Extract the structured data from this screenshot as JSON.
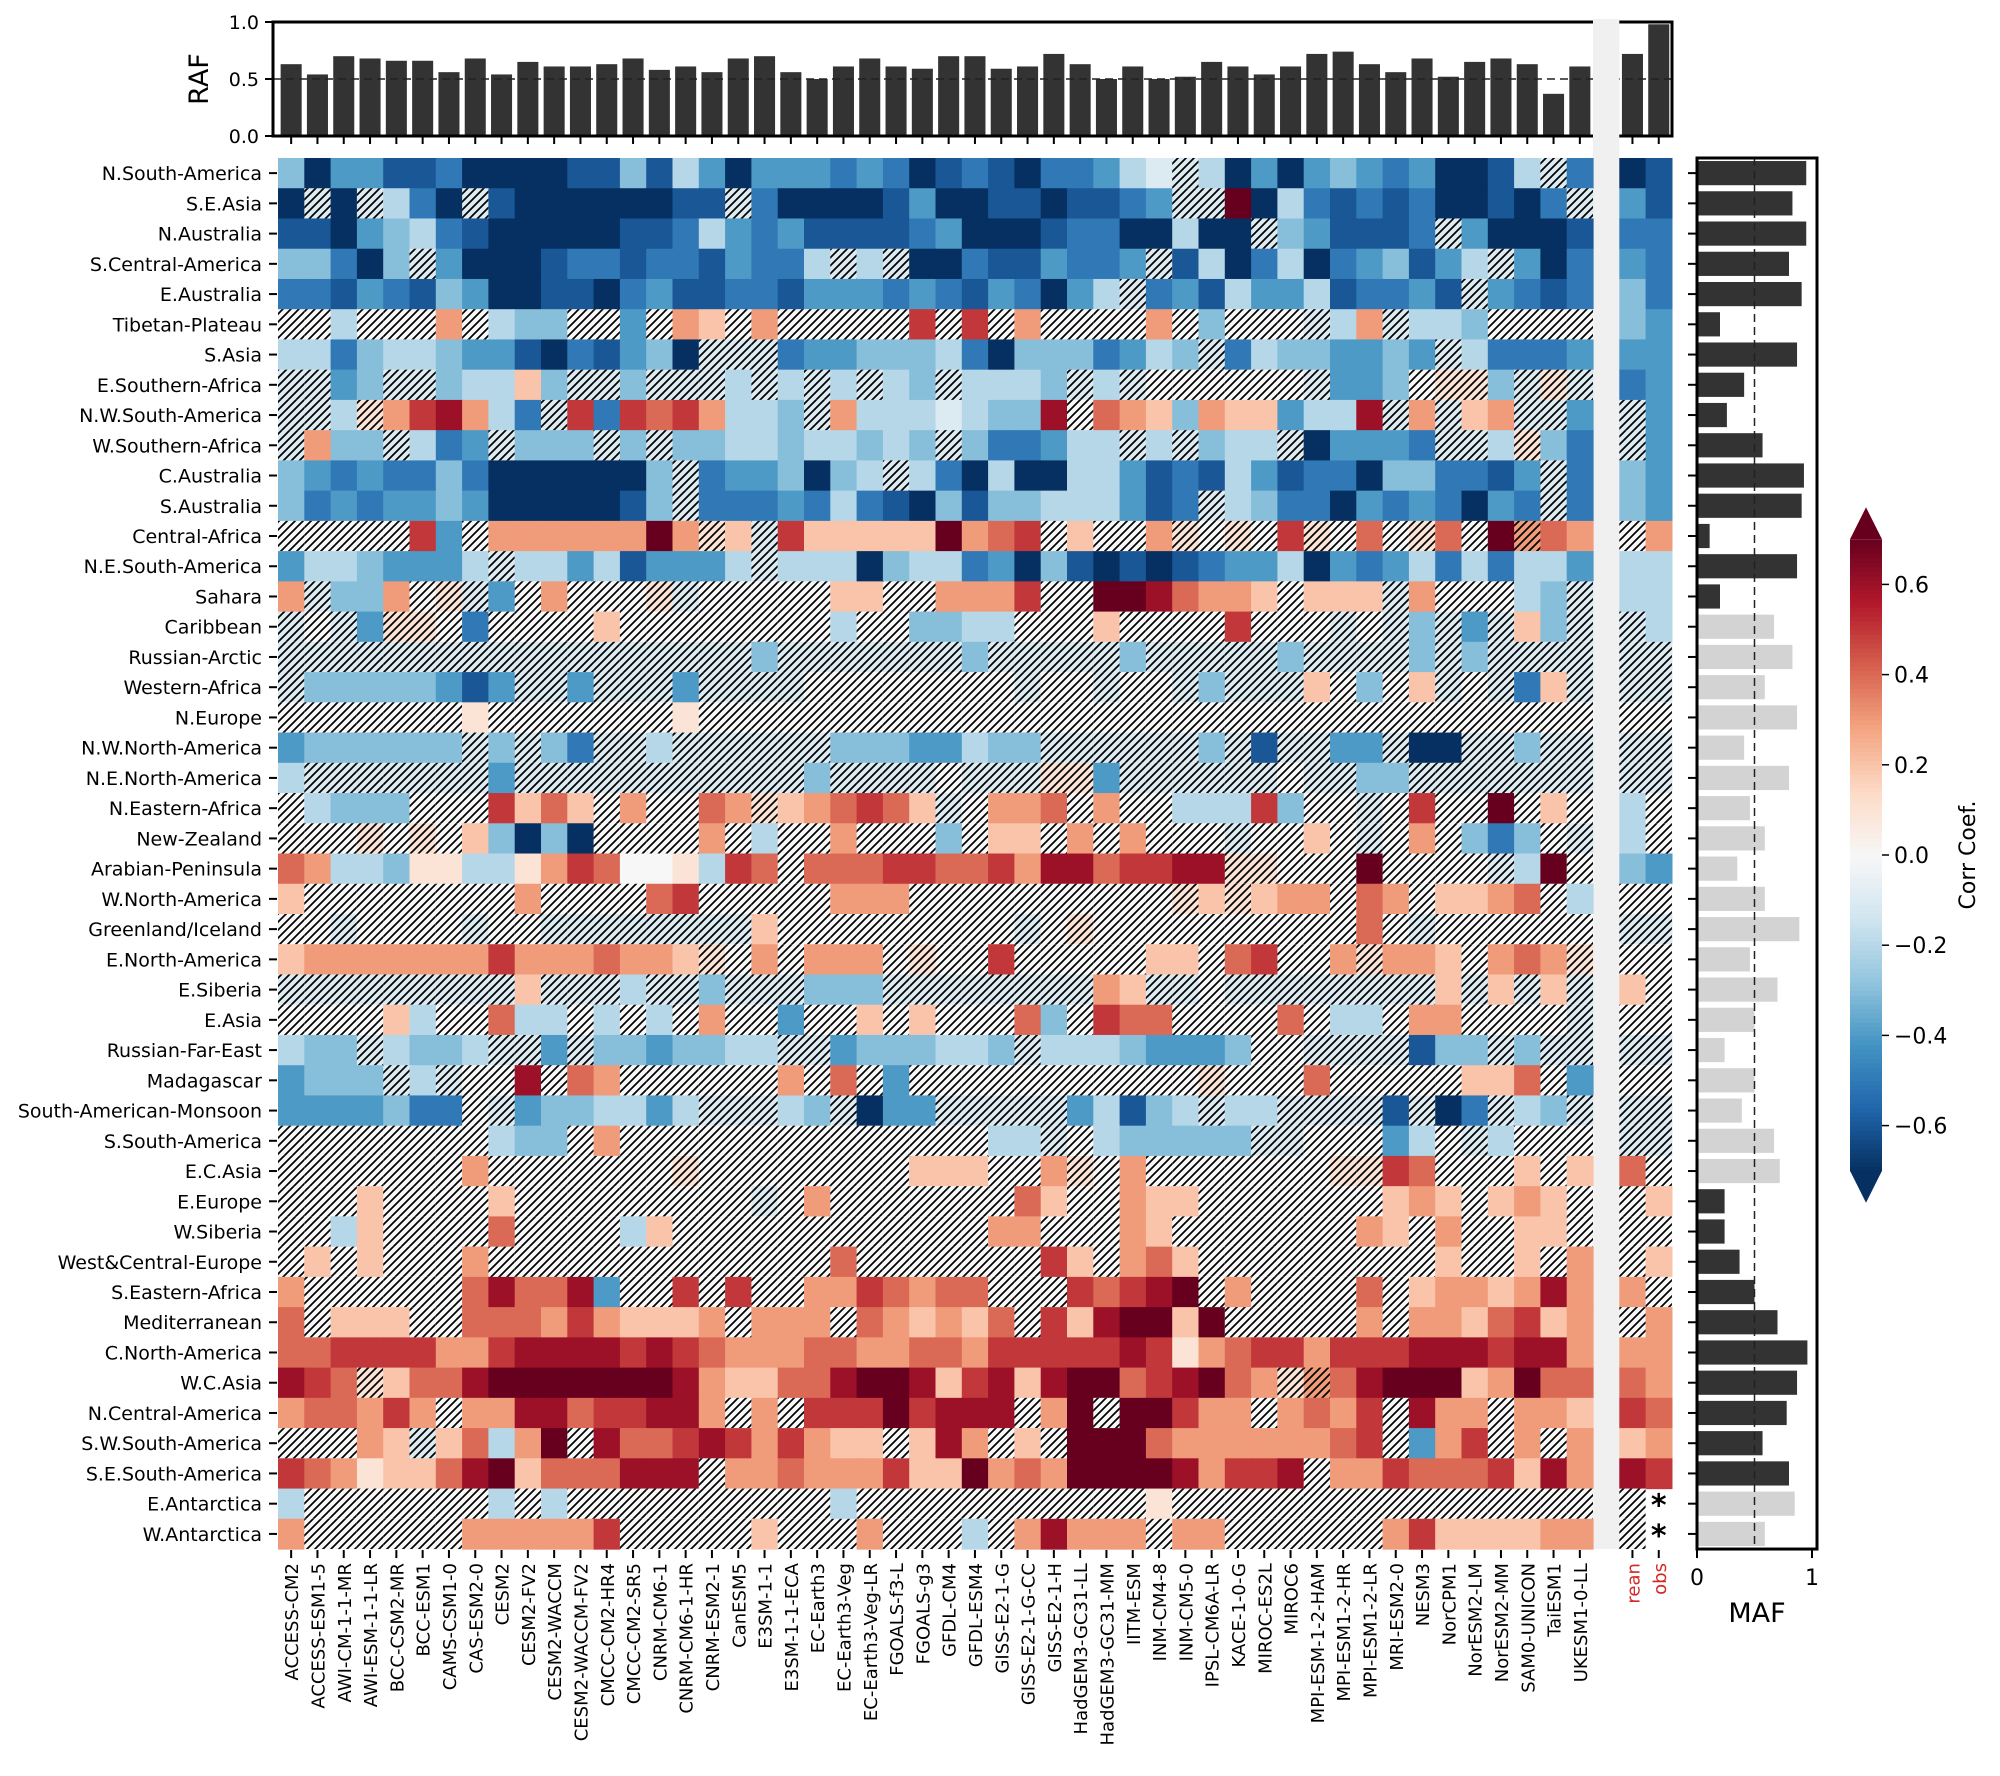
{
  "chart_data": {
    "type": "heatmap",
    "title": "",
    "colorbar": {
      "label": "Corr Coef.",
      "range": [
        -0.7,
        0.7
      ],
      "extend": "both",
      "colormap": "RdBu_r",
      "ticks": [
        -0.6,
        -0.4,
        -0.2,
        0.0,
        0.2,
        0.4,
        0.6
      ],
      "tick_labels": [
        "−0.6",
        "−0.4",
        "−0.2",
        "0.0",
        "0.2",
        "0.4",
        "0.6"
      ]
    },
    "columns": [
      "ACCESS-CM2",
      "ACCESS-ESM1-5",
      "AWI-CM-1-1-MR",
      "AWI-ESM-1-1-LR",
      "BCC-CSM2-MR",
      "BCC-ESM1",
      "CAMS-CSM1-0",
      "CAS-ESM2-0",
      "CESM2",
      "CESM2-FV2",
      "CESM2-WACCM",
      "CESM2-WACCM-FV2",
      "CMCC-CM2-HR4",
      "CMCC-CM2-SR5",
      "CNRM-CM6-1",
      "CNRM-CM6-1-HR",
      "CNRM-ESM2-1",
      "CanESM5",
      "E3SM-1-1",
      "E3SM-1-1-ECA",
      "EC-Earth3",
      "EC-Earth3-Veg",
      "EC-Earth3-Veg-LR",
      "FGOALS-f3-L",
      "FGOALS-g3",
      "GFDL-CM4",
      "GFDL-ESM4",
      "GISS-E2-1-G",
      "GISS-E2-1-G-CC",
      "GISS-E2-1-H",
      "HadGEM3-GC31-LL",
      "HadGEM3-GC31-MM",
      "IITM-ESM",
      "INM-CM4-8",
      "INM-CM5-0",
      "IPSL-CM6A-LR",
      "KACE-1-0-G",
      "MIROC-ES2L",
      "MIROC6",
      "MPI-ESM-1-2-HAM",
      "MPI-ESM1-2-HR",
      "MPI-ESM1-2-LR",
      "MRI-ESM2-0",
      "NESM3",
      "NorCPM1",
      "NorESM2-LM",
      "NorESM2-MM",
      "SAM0-UNICON",
      "TaiESM1",
      "UKESM1-0-LL"
    ],
    "reference_columns": [
      "rean",
      "obs"
    ],
    "reference_color": "#d62728",
    "regions": [
      "N.South-America",
      "S.E.Asia",
      "N.Australia",
      "S.Central-America",
      "E.Australia",
      "Tibetan-Plateau",
      "S.Asia",
      "E.Southern-Africa",
      "N.W.South-America",
      "W.Southern-Africa",
      "C.Australia",
      "S.Australia",
      "Central-Africa",
      "N.E.South-America",
      "Sahara",
      "Caribbean",
      "Russian-Arctic",
      "Western-Africa",
      "N.Europe",
      "N.W.North-America",
      "N.E.North-America",
      "N.Eastern-Africa",
      "New-Zealand",
      "Arabian-Peninsula",
      "W.North-America",
      "Greenland/Iceland",
      "E.North-America",
      "E.Siberia",
      "E.Asia",
      "Russian-Far-East",
      "Madagascar",
      "South-American-Monsoon",
      "S.South-America",
      "E.C.Asia",
      "E.Europe",
      "W.Siberia",
      "West&Central-Europe",
      "S.Eastern-Africa",
      "Mediterranean",
      "C.North-America",
      "W.C.Asia",
      "N.Central-America",
      "S.W.South-America",
      "S.E.South-America",
      "E.Antarctica",
      "W.Antarctica"
    ],
    "cell_encoding": {
      "letters": "abcdefghijklmno",
      "values": [
        -0.7,
        -0.6,
        -0.5,
        -0.4,
        -0.3,
        -0.2,
        -0.1,
        0.0,
        0.1,
        0.2,
        0.3,
        0.4,
        0.5,
        0.6,
        0.7
      ],
      "uppercase": "hatched (not significant)",
      "dot": "no data"
    },
    "rows": [
      "eaddbbcaaaabbebfdadddcdcabcbaccdfgGfadadedcdaabfGcab",
      "aGaGfcaGbaaaaaabbGcaaaabdaabbabbcdGGoafcbcbcaabacGdb",
      "bbadefcbaaaaabbcfdcdbbbbcdaaabccaafaaGedbbbcGdaaabcc",
      "eecaeGdaaabccbccbdccfGfGaacbbdccdGbfacfacdebdfGdacdc",
      "ccbdcbedaabbacdbbccbdddcdcbdcadfGcdbfddfbccdbGdcbcec",
      "HHfHHHkHfeeHHdHkjHkHHHHHmHmHkHHHHkHeHHHGfkGffeHHHHed",
      "ffceffeddbacbdeaGGGcddeeefcaeeecdfeGcfeeddedGfcccddd",
      "GGdeGGeffjeGGeGGGfGfGfGfeGfffeGfGHHHHHHGddeHIIeGIGcd",
      "GGfIkmnkfcGmcmlmkffeGkfffgfeenHlkjekjjdffnGkGjkGGdGd",
      "GkeeGfcdGeeeGeGeeffeffefeGeccdffGfGeffGadddcGGfIecGd",
      "edcdccecaaaaaaeGcddeaefGfcafaaffdbcbfdbccaeeccbdGced",
      "ecdcddedaaaaabeGcccdcfcbaebeefffdbcGfeccadcdcadcGced",
      "HHHHHmdHkkkkkkokIjGmjjjjjoklmHjHHkIHIHmIHlHIlHoKlkHk",
      "dffedddfGffdfbdddfGfffaeffcdaebababcddfadcdfcfcffdff",
      "kGeekHIGdHkHHHIGHHHHHjjHHkkkmHHoonlkkjHjjjGkHHHfeGff",
      "GHGdIIHcHHHHjHHHHHHHHfHHeeffHHHjHHHHmHHHGHGeGdGjeGGf",
      "GGGGGGGGGGGGGGGGGGeGGGGGGGeGGGGGeGGGGGeGGGGeGeGGGGGG",
      "GeeeeedbdGGdGGGdGGGGHHHHHHHHGHHGHHGeGGGjHeHjGHGcjGGG",
      "HHHHHHHiHHHHHHHiHHHHHHHHHHHHHHHHHHHHHHHHHHHHHHHHHHHH",
      "deeeeeeGeGecGGfGGGGGGeeeddfeeGGGGGGeGbGGddGaaGGeGGGG",
      "fGGGGGGGdGGGGGGGGGGGeGGGGHGGGIIdGGGGGGHGGeeGGGGGGGGG",
      "HfeeeHHHmjljHkHHlkIjklmljGHkklHkHHfffmeHHGHmHHoHjHfH",
      "HHHIHIHjeaeaHHHHkHfHHkHHHeHjjHkHkHHHGHHjHGHkHeceHGfH",
      "lkffeiiffikmlhhifmlHlllmmllmknnlmmnnIIHHHoHHHHGfoHed",
      "jHHHHHHHHkHHHHlmHHHHHkkkHHHHHHHHHHIjIjkkHlkHjjklHfHH",
      "HHGHHHHGHHGGGGGGGGjHHHHHHHHHGHIHHHHHHHHHHlHGHHHHHHGG",
      "jkkkkkkkmkkklkkjIHkHkkkHIHHmHHHHHjjHlmHHkIkkjHklkIHH",
      "GGGGGGGGGjGGGfGGeGGGeeeGGGGGGGGkjGGHGGGGGGGGjGjGjGjH",
      "HHHHjfHHlffHfHfHkHHdHHjHjHHHleHmllHHHHlHffHkkHHHHGHH",
      "feeGfeefGGdGeedeeffGGdeeeffeGfffedddeHHGGGGbeeGeGGGG",
      "deeeGfGHHnHlkHHHHHHkHlHdHHHHHHHHHHHIHHHlHHHHHjjlHdHH",
      "ddddeccHGdeeffdfGGGfeGaddGGGGGdfbefGffGGGGbGacGfeGGG",
      "HHHHHHHHfeeHkHHHHHHHHHHHHHHffGHfeeeeeGGHHHdfHGfHHHGG",
      "HHHHHHHkHHHHHHHIHHHHHHHHjjjHHkIHkHHHHHHHIImlHHHjHjlH",
      "HHHjHHHHjHHHHHHHHHGHkHHHHHHHljHHkjjHHHHHHHjkjHjkjHHj",
      "HHfjHHHHlHHHHfjHHHHHHHHHHHHkkHHHkjHHHHHHHkjHkHHjjHHH",
      "HjHjHHHkHHHHHHHHHHHHHlHHHHHHHmjHkljHHHHHHHHHjHHjHkHj",
      "kHHHHHHlnllndHHmHmHHkkmlkllHHHmlmnoHkHHHHlHjkkjknkkH",
      "lHjjjHHlllkmkjjjkHkkkHlkjkjlHmjnoojoHHHHHkHkkjlmjkHk",
      "llmmmmkkmnnnnmnmlkkkllkkllkmmmmmnmiklmmkmmmnnnmnnkkk",
      "nmlIjllnooooooonkjjllnoonjmnjnoolmnolkIKlnooojkolllk",
      "kllkmkHkknnlmmnnkHkHmmmomnnnHkoHoomkkHklkmHnkkHkkjml",
      "HHHkjGjlfkoHnllmnmkmkjjHjnkHjHooolkkkkkklmHdkmHkHkjk",
      "mlkijjlnojlllnnnHkklkkkmjjoklkoooonkmmnHkkmlllmjnknm",
      "fHHHHHHHfHfHHHHHHHHHHfHHHHHHHHHHHiHHHHHHHHHHHHHHHHH.",
      "kHHHHHHkkkkkmHHHHHjHHHkHHHfHknkkkHkkHHHHHHkmjjjjkkH."
    ],
    "cell_markers": [
      {
        "region": "E.Antarctica",
        "column": "obs",
        "marker": "*"
      },
      {
        "region": "W.Antarctica",
        "column": "obs",
        "marker": "*"
      }
    ],
    "raf": {
      "ylabel": "RAF",
      "ylim": [
        0,
        1
      ],
      "yticks": [
        "0.0",
        "0.5",
        "1.0"
      ],
      "reference_line": 0.5,
      "values": [
        0.63,
        0.54,
        0.7,
        0.68,
        0.66,
        0.66,
        0.56,
        0.68,
        0.54,
        0.65,
        0.61,
        0.61,
        0.63,
        0.68,
        0.58,
        0.61,
        0.56,
        0.68,
        0.7,
        0.56,
        0.5,
        0.61,
        0.68,
        0.61,
        0.59,
        0.7,
        0.7,
        0.59,
        0.61,
        0.72,
        0.63,
        0.5,
        0.61,
        0.5,
        0.52,
        0.65,
        0.61,
        0.54,
        0.61,
        0.72,
        0.74,
        0.63,
        0.56,
        0.68,
        0.52,
        0.65,
        0.68,
        0.63,
        0.37,
        0.61
      ],
      "reference_values": [
        0.72,
        0.98
      ]
    },
    "maf": {
      "xlabel": "MAF",
      "xlim": [
        0,
        1
      ],
      "xticks": [
        "0",
        "1"
      ],
      "reference_line": 0.5,
      "values": [
        0.95,
        0.83,
        0.95,
        0.8,
        0.91,
        0.2,
        0.87,
        0.41,
        0.26,
        0.57,
        0.93,
        0.91,
        0.11,
        0.87,
        0.2,
        0.67,
        0.83,
        0.59,
        0.87,
        0.41,
        0.8,
        0.46,
        0.59,
        0.35,
        0.59,
        0.89,
        0.46,
        0.7,
        0.5,
        0.24,
        0.5,
        0.39,
        0.67,
        0.72,
        0.24,
        0.24,
        0.37,
        0.5,
        0.7,
        0.96,
        0.87,
        0.78,
        0.57,
        0.8,
        0.85,
        0.59
      ],
      "significant": [
        1,
        1,
        1,
        1,
        1,
        1,
        1,
        1,
        1,
        1,
        1,
        1,
        1,
        1,
        1,
        0,
        0,
        0,
        0,
        0,
        0,
        0,
        0,
        0,
        0,
        0,
        0,
        0,
        0,
        0,
        0,
        0,
        0,
        0,
        1,
        1,
        1,
        1,
        1,
        1,
        1,
        1,
        1,
        1,
        0,
        0
      ],
      "colors": {
        "significant": "#333333",
        "not_significant": "#d3d3d3"
      }
    }
  }
}
